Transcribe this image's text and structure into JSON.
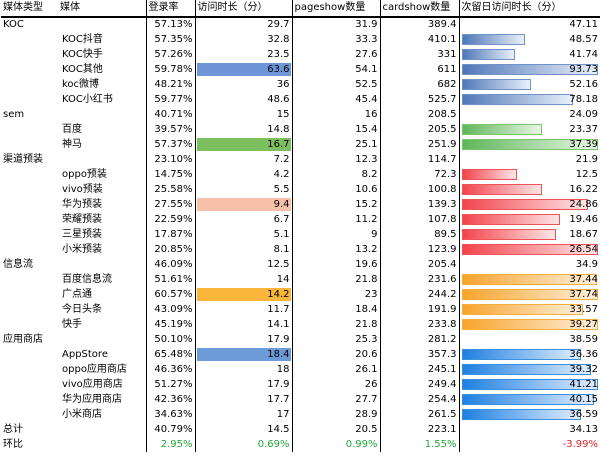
{
  "headers": [
    "媒体类型",
    "媒体",
    "登录率",
    "访问时长（分）",
    "pageshow数量",
    "cardshow数量",
    "次留日访问时长（分）"
  ],
  "groups": [
    {
      "category": "KOC",
      "summary": [
        "",
        "57.13%",
        "29.7",
        "31.9",
        "389.4",
        "47.11"
      ],
      "summary_ret": 0,
      "rows": [
        {
          "media": "KOC抖音",
          "rate": "57.35%",
          "dur": "32.8",
          "ps": "33.3",
          "cs": "410.1",
          "ret": "48.57",
          "ret_level": 0.48,
          "ret_color": "blue",
          "dur_fill": ""
        },
        {
          "media": "KOC快手",
          "rate": "57.26%",
          "dur": "23.5",
          "ps": "27.6",
          "cs": "331",
          "ret": "41.74",
          "ret_level": 0.41,
          "ret_color": "blue",
          "dur_fill": ""
        },
        {
          "media": "KOC其他",
          "rate": "59.78%",
          "dur": "63.6",
          "ps": "54.1",
          "cs": "611",
          "ret": "93.73",
          "ret_level": 1.0,
          "ret_color": "blue",
          "dur_fill": "blue"
        },
        {
          "media": "koc微博",
          "rate": "48.21%",
          "dur": "36",
          "ps": "52.5",
          "cs": "682",
          "ret": "52.16",
          "ret_level": 0.52,
          "ret_color": "blue",
          "dur_fill": ""
        },
        {
          "media": "KOC小红书",
          "rate": "59.77%",
          "dur": "48.6",
          "ps": "45.4",
          "cs": "525.7",
          "ret": "78.18",
          "ret_level": 0.82,
          "ret_color": "blue",
          "dur_fill": ""
        }
      ]
    },
    {
      "category": "sem",
      "summary": [
        "",
        "40.71%",
        "15",
        "16",
        "208.5",
        "24.09"
      ],
      "rows": [
        {
          "media": "百度",
          "rate": "39.57%",
          "dur": "14.8",
          "ps": "15.4",
          "cs": "205.5",
          "ret": "23.37",
          "ret_level": 0.6,
          "ret_color": "green",
          "dur_fill": ""
        },
        {
          "media": "神马",
          "rate": "57.37%",
          "dur": "16.7",
          "ps": "25.1",
          "cs": "251.9",
          "ret": "37.39",
          "ret_level": 1.0,
          "ret_color": "green",
          "dur_fill": "green"
        }
      ]
    },
    {
      "category": "渠道预装",
      "summary": [
        "",
        "23.10%",
        "7.2",
        "12.3",
        "114.7",
        "21.9"
      ],
      "rows": [
        {
          "media": "oppo预装",
          "rate": "14.75%",
          "dur": "4.2",
          "ps": "8.2",
          "cs": "72.3",
          "ret": "12.5",
          "ret_level": 0.42,
          "ret_color": "red",
          "dur_fill": ""
        },
        {
          "media": "vivo预装",
          "rate": "25.58%",
          "dur": "5.5",
          "ps": "10.6",
          "cs": "100.8",
          "ret": "16.22",
          "ret_level": 0.6,
          "ret_color": "red",
          "dur_fill": ""
        },
        {
          "media": "华为预装",
          "rate": "27.55%",
          "dur": "9.4",
          "ps": "15.2",
          "cs": "139.3",
          "ret": "24.86",
          "ret_level": 0.93,
          "ret_color": "red",
          "dur_fill": "peach"
        },
        {
          "media": "荣耀预装",
          "rate": "22.59%",
          "dur": "6.7",
          "ps": "11.2",
          "cs": "107.8",
          "ret": "19.46",
          "ret_level": 0.73,
          "ret_color": "red",
          "dur_fill": ""
        },
        {
          "media": "三星预装",
          "rate": "17.87%",
          "dur": "5.1",
          "ps": "9",
          "cs": "89.5",
          "ret": "18.67",
          "ret_level": 0.7,
          "ret_color": "red",
          "dur_fill": ""
        },
        {
          "media": "小米预装",
          "rate": "20.85%",
          "dur": "8.1",
          "ps": "13.2",
          "cs": "123.9",
          "ret": "26.54",
          "ret_level": 1.0,
          "ret_color": "red",
          "dur_fill": ""
        }
      ]
    },
    {
      "category": "信息流",
      "summary": [
        "",
        "46.09%",
        "12.5",
        "19.6",
        "205.4",
        "34.9"
      ],
      "rows": [
        {
          "media": "百度信息流",
          "rate": "51.61%",
          "dur": "14",
          "ps": "21.8",
          "cs": "231.6",
          "ret": "37.44",
          "ret_level": 0.99,
          "ret_color": "orange",
          "dur_fill": ""
        },
        {
          "media": "广点通",
          "rate": "60.57%",
          "dur": "14.2",
          "ps": "23",
          "cs": "244.2",
          "ret": "37.74",
          "ret_level": 1.0,
          "ret_color": "orange",
          "dur_fill": "orange"
        },
        {
          "media": "今日头条",
          "rate": "43.09%",
          "dur": "11.7",
          "ps": "18.4",
          "cs": "191.9",
          "ret": "33.57",
          "ret_level": 0.89,
          "ret_color": "orange",
          "dur_fill": ""
        },
        {
          "media": "快手",
          "rate": "45.19%",
          "dur": "14.1",
          "ps": "21.8",
          "cs": "233.8",
          "ret": "39.27",
          "ret_level": 1.0,
          "ret_color": "orange",
          "dur_fill": ""
        }
      ]
    },
    {
      "category": "应用商店",
      "summary": [
        "",
        "50.10%",
        "17.9",
        "25.3",
        "281.2",
        "38.59"
      ],
      "rows": [
        {
          "media": "AppStore",
          "rate": "65.48%",
          "dur": "18.4",
          "ps": "20.6",
          "cs": "357.3",
          "ret": "36.36",
          "ret_level": 0.88,
          "ret_color": "sky",
          "dur_fill": "sky"
        },
        {
          "media": "oppo应用商店",
          "rate": "46.36%",
          "dur": "18",
          "ps": "26.1",
          "cs": "245.1",
          "ret": "39.32",
          "ret_level": 0.95,
          "ret_color": "sky",
          "dur_fill": ""
        },
        {
          "media": "vivo应用商店",
          "rate": "51.27%",
          "dur": "17.9",
          "ps": "26",
          "cs": "249.4",
          "ret": "41.21",
          "ret_level": 1.0,
          "ret_color": "sky",
          "dur_fill": ""
        },
        {
          "media": "华为应用商店",
          "rate": "42.36%",
          "dur": "17.7",
          "ps": "27.7",
          "cs": "254.4",
          "ret": "40.15",
          "ret_level": 0.97,
          "ret_color": "sky",
          "dur_fill": ""
        },
        {
          "media": "小米商店",
          "rate": "34.63%",
          "dur": "17",
          "ps": "28.9",
          "cs": "261.5",
          "ret": "36.59",
          "ret_level": 0.88,
          "ret_color": "sky",
          "dur_fill": ""
        }
      ]
    }
  ],
  "total": {
    "label": "总计",
    "rate": "40.79%",
    "dur": "14.5",
    "ps": "20.5",
    "cs": "223.1",
    "ret": "34.13"
  },
  "ratio": {
    "label": "环比",
    "rate": "2.95%",
    "dur": "0.69%",
    "ps": "0.99%",
    "cs": "1.55%",
    "ret": "-3.99%"
  },
  "colors": {
    "blue": "#6f93c9",
    "green": "#7cc36d",
    "red": "#f0525a",
    "orange": "#f7ad3c",
    "sky": "#3b8fe0",
    "peach": "#f7c0a8",
    "dur_blue": "#6d95d8",
    "dur_green": "#7cbf5e",
    "dur_orange": "#f9b63a",
    "dur_sky": "#6d9bd8",
    "positive": "#22a83a",
    "negative": "#e0252b"
  }
}
